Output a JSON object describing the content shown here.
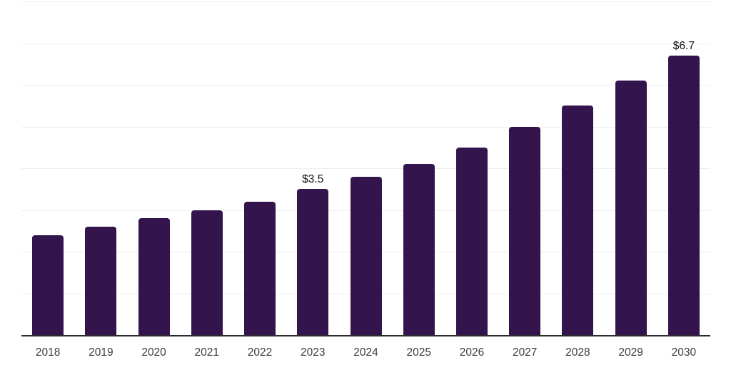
{
  "chart_data": {
    "type": "bar",
    "categories": [
      "2018",
      "2019",
      "2020",
      "2021",
      "2022",
      "2023",
      "2024",
      "2025",
      "2026",
      "2027",
      "2028",
      "2029",
      "2030"
    ],
    "values": [
      2.4,
      2.6,
      2.8,
      3.0,
      3.2,
      3.5,
      3.8,
      4.1,
      4.5,
      5.0,
      5.5,
      6.1,
      6.7
    ],
    "data_labels": {
      "2023": "$3.5",
      "2030": "$6.7"
    },
    "xlabel": "",
    "ylabel": "",
    "ylim": [
      0,
      8
    ],
    "grid": true,
    "gridline_step": 1,
    "y_axis_tick_labels_visible": false,
    "legend_position": "none",
    "colors": {
      "bar": "#34144d",
      "gridline": "#ededed",
      "axis_line": "#2b2b2b",
      "tick_label": "#3d3d3d",
      "value_label": "#101010",
      "background": "#ffffff"
    }
  }
}
